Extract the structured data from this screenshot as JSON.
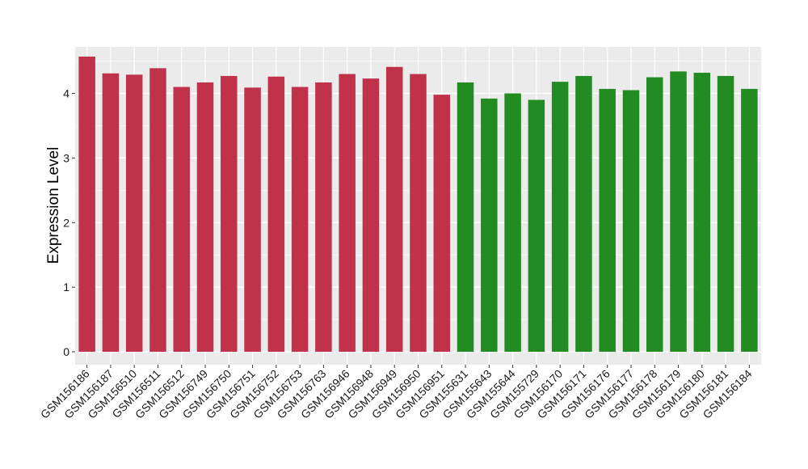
{
  "chart_data": {
    "type": "bar",
    "title": "",
    "xlabel": "",
    "ylabel": "Expression Level",
    "ylim": [
      -0.2,
      4.72
    ],
    "y_ticks": [
      0,
      1,
      2,
      3,
      4
    ],
    "grid": true,
    "legend": "none",
    "colors": {
      "group1": "#c0314a",
      "group2": "#228b22",
      "panel": "#ebebeb",
      "gridline": "#ffffff"
    },
    "categories": [
      "GSM156186",
      "GSM156187",
      "GSM156510",
      "GSM156511",
      "GSM156512",
      "GSM156749",
      "GSM156750",
      "GSM156751",
      "GSM156752",
      "GSM156753",
      "GSM156763",
      "GSM156946",
      "GSM156948",
      "GSM156949",
      "GSM156950",
      "GSM156951",
      "GSM155631",
      "GSM155643",
      "GSM155644",
      "GSM155729",
      "GSM156170",
      "GSM156171",
      "GSM156176",
      "GSM156177",
      "GSM156178",
      "GSM156179",
      "GSM156180",
      "GSM156181",
      "GSM156184"
    ],
    "values": [
      4.57,
      4.31,
      4.29,
      4.39,
      4.1,
      4.17,
      4.27,
      4.09,
      4.26,
      4.1,
      4.17,
      4.3,
      4.23,
      4.41,
      4.3,
      3.98,
      4.17,
      3.92,
      4.0,
      3.9,
      4.18,
      4.27,
      4.07,
      4.05,
      4.25,
      4.34,
      4.32,
      4.27,
      4.07
    ],
    "groups": [
      1,
      1,
      1,
      1,
      1,
      1,
      1,
      1,
      1,
      1,
      1,
      1,
      1,
      1,
      1,
      1,
      2,
      2,
      2,
      2,
      2,
      2,
      2,
      2,
      2,
      2,
      2,
      2,
      2
    ]
  }
}
